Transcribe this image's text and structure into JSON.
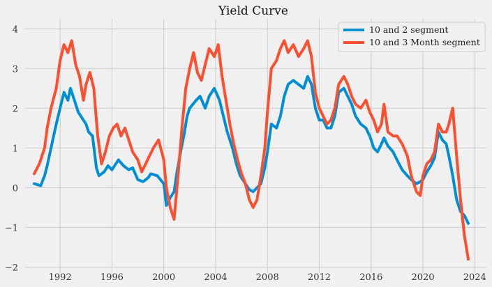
{
  "chart_data": {
    "type": "line",
    "title": "Yield Curve",
    "xlabel": "",
    "ylabel": "",
    "xlim": [
      1989.3,
      2024.9
    ],
    "ylim": [
      -2.15,
      4.25
    ],
    "x_ticks": [
      1992,
      1996,
      2000,
      2004,
      2008,
      2012,
      2016,
      2020,
      2024
    ],
    "y_ticks": [
      -2,
      -1,
      0,
      1,
      2,
      3,
      4
    ],
    "x_tick_labels": [
      "1992",
      "1996",
      "2000",
      "2004",
      "2008",
      "2012",
      "2016",
      "2020",
      "2024"
    ],
    "y_tick_labels": [
      "−2",
      "−1",
      "0",
      "1",
      "2",
      "3",
      "4"
    ],
    "grid": true,
    "legend_position": "top-right",
    "series": [
      {
        "name": "10 and 2 segment",
        "color": "#008fd5",
        "points": [
          [
            1990.0,
            0.1
          ],
          [
            1990.5,
            0.05
          ],
          [
            1990.8,
            0.3
          ],
          [
            1991.0,
            0.55
          ],
          [
            1991.3,
            1.0
          ],
          [
            1991.7,
            1.6
          ],
          [
            1992.0,
            2.0
          ],
          [
            1992.3,
            2.4
          ],
          [
            1992.6,
            2.2
          ],
          [
            1992.8,
            2.5
          ],
          [
            1993.1,
            2.2
          ],
          [
            1993.4,
            1.9
          ],
          [
            1993.7,
            1.75
          ],
          [
            1994.0,
            1.6
          ],
          [
            1994.2,
            1.4
          ],
          [
            1994.5,
            1.3
          ],
          [
            1994.8,
            0.5
          ],
          [
            1995.0,
            0.3
          ],
          [
            1995.4,
            0.4
          ],
          [
            1995.7,
            0.55
          ],
          [
            1996.0,
            0.45
          ],
          [
            1996.3,
            0.6
          ],
          [
            1996.5,
            0.7
          ],
          [
            1996.9,
            0.55
          ],
          [
            1997.3,
            0.45
          ],
          [
            1997.6,
            0.5
          ],
          [
            1998.0,
            0.2
          ],
          [
            1998.4,
            0.15
          ],
          [
            1998.8,
            0.25
          ],
          [
            1999.0,
            0.35
          ],
          [
            1999.5,
            0.3
          ],
          [
            2000.0,
            0.1
          ],
          [
            2000.2,
            -0.45
          ],
          [
            2000.5,
            -0.25
          ],
          [
            2000.8,
            -0.1
          ],
          [
            2001.0,
            0.35
          ],
          [
            2001.3,
            0.9
          ],
          [
            2001.6,
            1.4
          ],
          [
            2001.8,
            1.8
          ],
          [
            2002.0,
            2.0
          ],
          [
            2002.5,
            2.2
          ],
          [
            2002.8,
            2.3
          ],
          [
            2003.2,
            2.0
          ],
          [
            2003.5,
            2.3
          ],
          [
            2003.9,
            2.5
          ],
          [
            2004.3,
            2.2
          ],
          [
            2004.6,
            1.8
          ],
          [
            2004.9,
            1.4
          ],
          [
            2005.3,
            1.0
          ],
          [
            2005.6,
            0.6
          ],
          [
            2005.9,
            0.3
          ],
          [
            2006.3,
            0.1
          ],
          [
            2006.6,
            -0.05
          ],
          [
            2006.9,
            -0.1
          ],
          [
            2007.2,
            0.0
          ],
          [
            2007.5,
            0.1
          ],
          [
            2007.8,
            0.5
          ],
          [
            2008.0,
            0.9
          ],
          [
            2008.3,
            1.6
          ],
          [
            2008.7,
            1.5
          ],
          [
            2009.0,
            1.8
          ],
          [
            2009.3,
            2.3
          ],
          [
            2009.6,
            2.6
          ],
          [
            2010.0,
            2.7
          ],
          [
            2010.4,
            2.6
          ],
          [
            2010.8,
            2.5
          ],
          [
            2011.1,
            2.8
          ],
          [
            2011.4,
            2.6
          ],
          [
            2011.7,
            2.0
          ],
          [
            2012.0,
            1.7
          ],
          [
            2012.3,
            1.7
          ],
          [
            2012.6,
            1.5
          ],
          [
            2012.9,
            1.5
          ],
          [
            2013.2,
            1.8
          ],
          [
            2013.5,
            2.4
          ],
          [
            2013.9,
            2.5
          ],
          [
            2014.2,
            2.3
          ],
          [
            2014.5,
            2.1
          ],
          [
            2014.8,
            1.8
          ],
          [
            2015.2,
            1.6
          ],
          [
            2015.6,
            1.5
          ],
          [
            2015.9,
            1.3
          ],
          [
            2016.2,
            1.0
          ],
          [
            2016.5,
            0.9
          ],
          [
            2016.8,
            1.1
          ],
          [
            2017.0,
            1.25
          ],
          [
            2017.3,
            1.05
          ],
          [
            2017.7,
            0.9
          ],
          [
            2018.0,
            0.7
          ],
          [
            2018.4,
            0.45
          ],
          [
            2018.8,
            0.3
          ],
          [
            2019.1,
            0.2
          ],
          [
            2019.5,
            0.1
          ],
          [
            2019.8,
            0.15
          ],
          [
            2020.0,
            0.2
          ],
          [
            2020.3,
            0.4
          ],
          [
            2020.6,
            0.55
          ],
          [
            2020.9,
            0.75
          ],
          [
            2021.2,
            1.4
          ],
          [
            2021.5,
            1.2
          ],
          [
            2021.8,
            1.1
          ],
          [
            2022.0,
            0.8
          ],
          [
            2022.3,
            0.3
          ],
          [
            2022.6,
            -0.3
          ],
          [
            2022.9,
            -0.6
          ],
          [
            2023.2,
            -0.7
          ],
          [
            2023.5,
            -0.9
          ]
        ]
      },
      {
        "name": "10 and 3 Month segment",
        "color": "#fc4f30",
        "points": [
          [
            1990.0,
            0.35
          ],
          [
            1990.4,
            0.6
          ],
          [
            1990.8,
            1.0
          ],
          [
            1991.0,
            1.5
          ],
          [
            1991.3,
            2.0
          ],
          [
            1991.7,
            2.5
          ],
          [
            1992.0,
            3.2
          ],
          [
            1992.3,
            3.6
          ],
          [
            1992.6,
            3.4
          ],
          [
            1992.9,
            3.7
          ],
          [
            1993.2,
            3.1
          ],
          [
            1993.5,
            2.8
          ],
          [
            1993.8,
            2.2
          ],
          [
            1994.0,
            2.6
          ],
          [
            1994.3,
            2.9
          ],
          [
            1994.6,
            2.5
          ],
          [
            1994.9,
            1.3
          ],
          [
            1995.2,
            0.6
          ],
          [
            1995.5,
            0.9
          ],
          [
            1995.8,
            1.3
          ],
          [
            1996.1,
            1.5
          ],
          [
            1996.4,
            1.6
          ],
          [
            1996.7,
            1.3
          ],
          [
            1997.0,
            1.5
          ],
          [
            1997.3,
            1.2
          ],
          [
            1997.6,
            0.9
          ],
          [
            1998.0,
            0.7
          ],
          [
            1998.3,
            0.4
          ],
          [
            1998.6,
            0.6
          ],
          [
            1998.9,
            0.8
          ],
          [
            1999.2,
            1.0
          ],
          [
            1999.6,
            1.2
          ],
          [
            2000.0,
            0.7
          ],
          [
            2000.2,
            0.0
          ],
          [
            2000.5,
            -0.5
          ],
          [
            2000.8,
            -0.8
          ],
          [
            2001.1,
            0.3
          ],
          [
            2001.4,
            1.5
          ],
          [
            2001.7,
            2.5
          ],
          [
            2002.0,
            3.0
          ],
          [
            2002.3,
            3.4
          ],
          [
            2002.6,
            2.9
          ],
          [
            2002.9,
            2.7
          ],
          [
            2003.2,
            3.1
          ],
          [
            2003.5,
            3.5
          ],
          [
            2003.9,
            3.3
          ],
          [
            2004.2,
            3.6
          ],
          [
            2004.5,
            2.8
          ],
          [
            2004.8,
            2.2
          ],
          [
            2005.1,
            1.6
          ],
          [
            2005.4,
            1.1
          ],
          [
            2005.7,
            0.7
          ],
          [
            2006.0,
            0.35
          ],
          [
            2006.3,
            0.1
          ],
          [
            2006.6,
            -0.3
          ],
          [
            2006.9,
            -0.5
          ],
          [
            2007.2,
            -0.3
          ],
          [
            2007.5,
            0.3
          ],
          [
            2007.8,
            1.0
          ],
          [
            2008.0,
            1.9
          ],
          [
            2008.3,
            3.0
          ],
          [
            2008.7,
            3.2
          ],
          [
            2009.0,
            3.5
          ],
          [
            2009.3,
            3.7
          ],
          [
            2009.6,
            3.4
          ],
          [
            2010.0,
            3.6
          ],
          [
            2010.4,
            3.3
          ],
          [
            2010.8,
            3.5
          ],
          [
            2011.1,
            3.7
          ],
          [
            2011.4,
            3.3
          ],
          [
            2011.7,
            2.4
          ],
          [
            2012.0,
            2.0
          ],
          [
            2012.3,
            1.8
          ],
          [
            2012.6,
            1.6
          ],
          [
            2012.9,
            1.7
          ],
          [
            2013.2,
            2.0
          ],
          [
            2013.5,
            2.6
          ],
          [
            2013.9,
            2.8
          ],
          [
            2014.2,
            2.6
          ],
          [
            2014.5,
            2.3
          ],
          [
            2014.8,
            2.1
          ],
          [
            2015.2,
            2.0
          ],
          [
            2015.6,
            2.2
          ],
          [
            2015.9,
            1.9
          ],
          [
            2016.2,
            1.7
          ],
          [
            2016.5,
            1.4
          ],
          [
            2016.8,
            1.6
          ],
          [
            2017.0,
            2.1
          ],
          [
            2017.3,
            1.4
          ],
          [
            2017.7,
            1.3
          ],
          [
            2018.0,
            1.3
          ],
          [
            2018.4,
            1.1
          ],
          [
            2018.8,
            0.8
          ],
          [
            2019.1,
            0.3
          ],
          [
            2019.5,
            -0.1
          ],
          [
            2019.8,
            -0.2
          ],
          [
            2020.0,
            0.3
          ],
          [
            2020.3,
            0.6
          ],
          [
            2020.6,
            0.7
          ],
          [
            2020.9,
            0.9
          ],
          [
            2021.2,
            1.6
          ],
          [
            2021.5,
            1.4
          ],
          [
            2021.8,
            1.4
          ],
          [
            2022.0,
            1.6
          ],
          [
            2022.3,
            2.0
          ],
          [
            2022.6,
            0.8
          ],
          [
            2022.9,
            -0.3
          ],
          [
            2023.2,
            -1.2
          ],
          [
            2023.5,
            -1.8
          ]
        ]
      }
    ]
  }
}
